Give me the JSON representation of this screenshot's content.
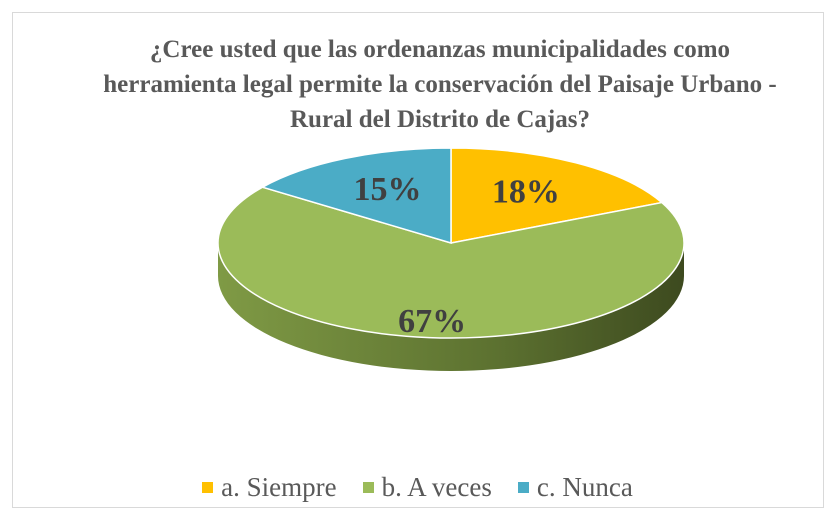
{
  "chart_data": {
    "type": "pie",
    "title": "¿Cree usted que las ordenanzas municipalidades como herramienta legal permite la conservación del Paisaje Urbano - Rural del Distrito de Cajas?",
    "categories": [
      "a. Siempre",
      "b. A veces",
      "c. Nunca"
    ],
    "values": [
      18,
      67,
      15
    ],
    "value_labels": [
      "18%",
      "67%",
      "15%"
    ],
    "colors": [
      "#ffc000",
      "#9bbb59",
      "#4bacc6"
    ],
    "legend": "bottom"
  }
}
